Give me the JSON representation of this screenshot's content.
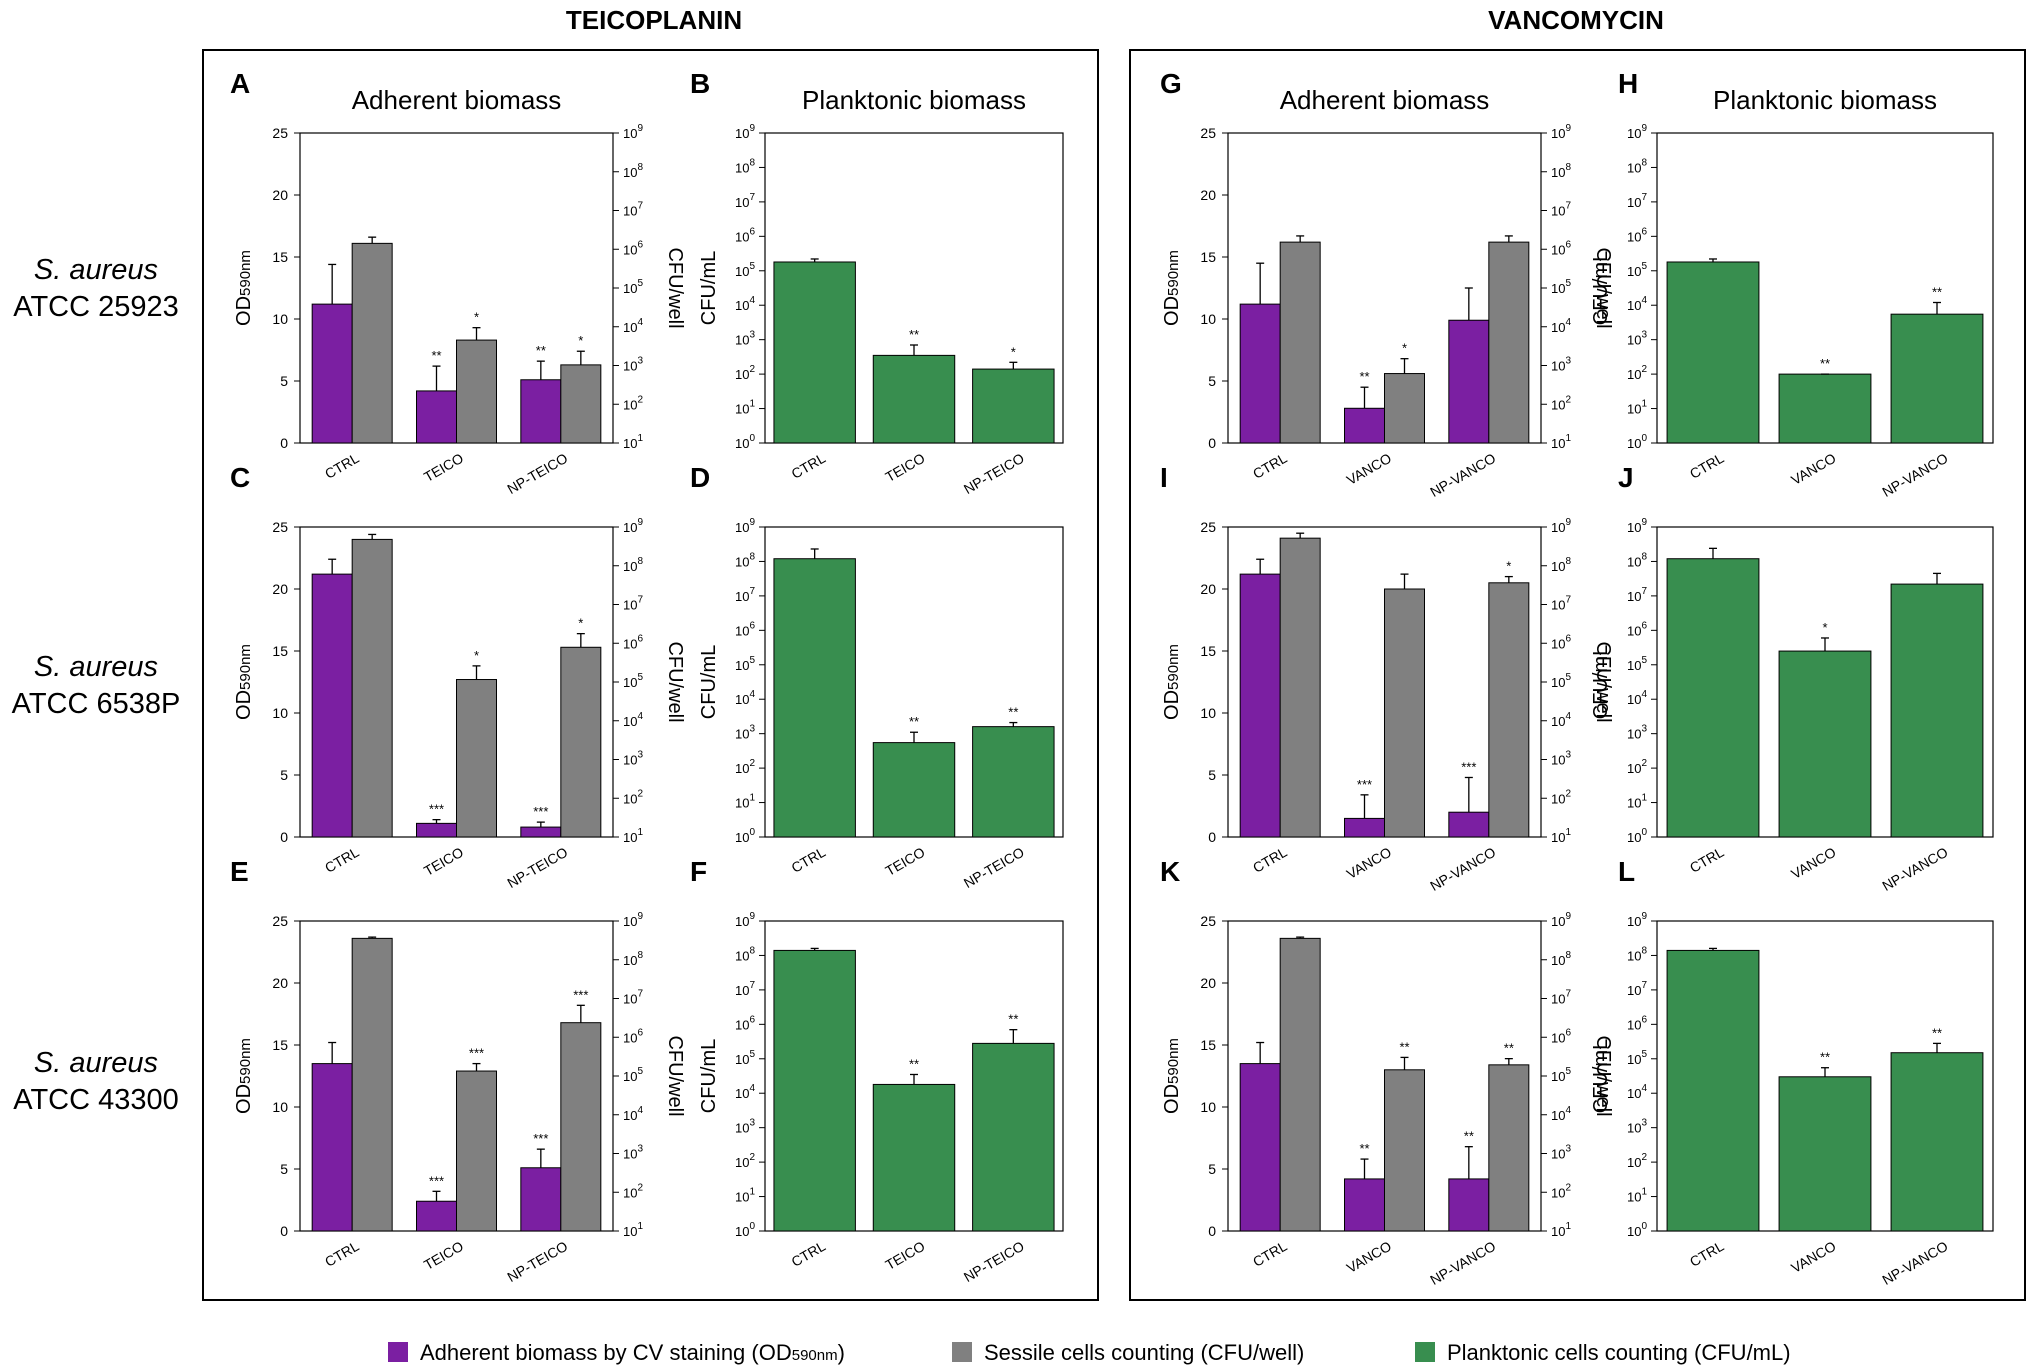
{
  "colors": {
    "adherent": "#7b1fa2",
    "sessile": "#808080",
    "planktonic": "#388e4f",
    "frame": "#000000"
  },
  "groups": [
    {
      "title": "TEICOPLANIN"
    },
    {
      "title": "VANCOMYCIN"
    }
  ],
  "strains": [
    {
      "species": "S. aureus",
      "atcc": "ATCC 25923"
    },
    {
      "species": "S. aureus",
      "atcc": "ATCC 6538P"
    },
    {
      "species": "S. aureus",
      "atcc": "ATCC 43300"
    }
  ],
  "legend": [
    {
      "label": "Adherent biomass by CV staining (OD",
      "sub": "590nm",
      "suffix": ")"
    },
    {
      "label": "Sessile cells counting (CFU/well)",
      "sub": "",
      "suffix": ""
    },
    {
      "label": "Planktonic cells counting (CFU/mL)",
      "sub": "",
      "suffix": ""
    }
  ],
  "chart_data": [
    {
      "panel": "A",
      "type": "bar",
      "title": "Adherent biomass",
      "categories": [
        "CTRL",
        "TEICO",
        "NP-TEICO"
      ],
      "ylabel": "OD",
      "ylabel_sub": "590nm",
      "ylim": [
        0,
        25
      ],
      "yticks": [
        0,
        5,
        10,
        15,
        20,
        25
      ],
      "y2label": "CFU/well",
      "y2_log_range": [
        1,
        9
      ],
      "series": [
        {
          "name": "Adherent biomass by CV staining",
          "axis": "left",
          "values": [
            11.2,
            4.2,
            5.1
          ],
          "errors": [
            3.2,
            2.0,
            1.5
          ],
          "sig": [
            "",
            "**",
            "**"
          ]
        },
        {
          "name": "Sessile cells counting",
          "axis": "left",
          "values": [
            16.1,
            8.3,
            6.3
          ],
          "errors": [
            0.5,
            1.0,
            1.1
          ],
          "sig": [
            "",
            "*",
            "*"
          ]
        }
      ]
    },
    {
      "panel": "B",
      "type": "bar",
      "title": "Planktonic biomass",
      "categories": [
        "CTRL",
        "TEICO",
        "NP-TEICO"
      ],
      "ylabel": "CFU/mL",
      "log_range": [
        0,
        9
      ],
      "series": [
        {
          "name": "Planktonic cells counting",
          "values": [
            180000,
            350,
            140
          ],
          "err_hi": [
            220000,
            700,
            220
          ],
          "sig": [
            "",
            "**",
            "*"
          ]
        }
      ]
    },
    {
      "panel": "C",
      "type": "bar",
      "title": "",
      "categories": [
        "CTRL",
        "TEICO",
        "NP-TEICO"
      ],
      "ylabel": "OD",
      "ylabel_sub": "590nm",
      "ylim": [
        0,
        25
      ],
      "yticks": [
        0,
        5,
        10,
        15,
        20,
        25
      ],
      "y2label": "CFU/well",
      "y2_log_range": [
        1,
        9
      ],
      "series": [
        {
          "name": "Adherent biomass by CV staining",
          "axis": "left",
          "values": [
            21.2,
            1.1,
            0.8
          ],
          "errors": [
            1.2,
            0.3,
            0.4
          ],
          "sig": [
            "",
            "***",
            "***"
          ]
        },
        {
          "name": "Sessile cells counting",
          "axis": "left",
          "values": [
            24.0,
            12.7,
            15.3
          ],
          "errors": [
            0.4,
            1.1,
            1.1
          ],
          "sig": [
            "",
            "*",
            "*"
          ]
        }
      ]
    },
    {
      "panel": "D",
      "type": "bar",
      "title": "",
      "categories": [
        "CTRL",
        "TEICO",
        "NP-TEICO"
      ],
      "ylabel": "CFU/mL",
      "log_range": [
        0,
        9
      ],
      "series": [
        {
          "name": "Planktonic cells counting",
          "values": [
            120000000,
            550,
            1600
          ],
          "err_hi": [
            230000000,
            1100,
            2100
          ],
          "sig": [
            "",
            "**",
            "**"
          ]
        }
      ]
    },
    {
      "panel": "E",
      "type": "bar",
      "title": "",
      "categories": [
        "CTRL",
        "TEICO",
        "NP-TEICO"
      ],
      "ylabel": "OD",
      "ylabel_sub": "590nm",
      "ylim": [
        0,
        25
      ],
      "yticks": [
        0,
        5,
        10,
        15,
        20,
        25
      ],
      "y2label": "CFU/well",
      "y2_log_range": [
        1,
        9
      ],
      "series": [
        {
          "name": "Adherent biomass by CV staining",
          "axis": "left",
          "values": [
            13.5,
            2.4,
            5.1
          ],
          "errors": [
            1.7,
            0.8,
            1.5
          ],
          "sig": [
            "",
            "***",
            "***"
          ]
        },
        {
          "name": "Sessile cells counting",
          "axis": "left",
          "values": [
            23.6,
            12.9,
            16.8
          ],
          "errors": [
            0.1,
            0.6,
            1.4
          ],
          "sig": [
            "",
            "***",
            "***"
          ]
        }
      ]
    },
    {
      "panel": "F",
      "type": "bar",
      "title": "",
      "categories": [
        "CTRL",
        "TEICO",
        "NP-TEICO"
      ],
      "ylabel": "CFU/mL",
      "log_range": [
        0,
        9
      ],
      "series": [
        {
          "name": "Planktonic cells counting",
          "values": [
            140000000,
            18000,
            280000
          ],
          "err_hi": [
            160000000,
            35000,
            700000
          ],
          "sig": [
            "",
            "**",
            "**"
          ]
        }
      ]
    },
    {
      "panel": "G",
      "type": "bar",
      "title": "Adherent biomass",
      "categories": [
        "CTRL",
        "VANCO",
        "NP-VANCO"
      ],
      "ylabel": "OD",
      "ylabel_sub": "590nm",
      "ylim": [
        0,
        25
      ],
      "yticks": [
        0,
        5,
        10,
        15,
        20,
        25
      ],
      "y2label": "CFU/well",
      "y2_log_range": [
        1,
        9
      ],
      "series": [
        {
          "name": "Adherent biomass by CV staining",
          "axis": "left",
          "values": [
            11.2,
            2.8,
            9.9
          ],
          "errors": [
            3.3,
            1.7,
            2.6
          ],
          "sig": [
            "",
            "**",
            ""
          ]
        },
        {
          "name": "Sessile cells counting",
          "axis": "left",
          "values": [
            16.2,
            5.6,
            16.2
          ],
          "errors": [
            0.5,
            1.2,
            0.5
          ],
          "sig": [
            "",
            "*",
            ""
          ]
        }
      ]
    },
    {
      "panel": "H",
      "type": "bar",
      "title": "Planktonic biomass",
      "categories": [
        "CTRL",
        "VANCO",
        "NP-VANCO"
      ],
      "ylabel": "CFU/mL",
      "log_range": [
        0,
        9
      ],
      "series": [
        {
          "name": "Planktonic cells counting",
          "values": [
            180000,
            100,
            5500
          ],
          "err_hi": [
            220000,
            100,
            12000
          ],
          "sig": [
            "",
            "**",
            "**"
          ]
        }
      ]
    },
    {
      "panel": "I",
      "type": "bar",
      "title": "",
      "categories": [
        "CTRL",
        "VANCO",
        "NP-VANCO"
      ],
      "ylabel": "OD",
      "ylabel_sub": "590nm",
      "ylim": [
        0,
        25
      ],
      "yticks": [
        0,
        5,
        10,
        15,
        20,
        25
      ],
      "y2label": "CFU/well",
      "y2_log_range": [
        1,
        9
      ],
      "series": [
        {
          "name": "Adherent biomass by CV staining",
          "axis": "left",
          "values": [
            21.2,
            1.5,
            2.0
          ],
          "errors": [
            1.2,
            1.9,
            2.8
          ],
          "sig": [
            "",
            "***",
            "***"
          ]
        },
        {
          "name": "Sessile cells counting",
          "axis": "left",
          "values": [
            24.1,
            20.0,
            20.5
          ],
          "errors": [
            0.4,
            1.2,
            0.5
          ],
          "sig": [
            "",
            "",
            "*"
          ]
        }
      ]
    },
    {
      "panel": "J",
      "type": "bar",
      "title": "",
      "categories": [
        "CTRL",
        "VANCO",
        "NP-VANCO"
      ],
      "ylabel": "CFU/mL",
      "log_range": [
        0,
        9
      ],
      "series": [
        {
          "name": "Planktonic cells counting",
          "values": [
            120000000,
            250000,
            22000000
          ],
          "err_hi": [
            240000000,
            600000,
            45000000
          ],
          "sig": [
            "",
            "*",
            ""
          ]
        }
      ]
    },
    {
      "panel": "K",
      "type": "bar",
      "title": "",
      "categories": [
        "CTRL",
        "VANCO",
        "NP-VANCO"
      ],
      "ylabel": "OD",
      "ylabel_sub": "590nm",
      "ylim": [
        0,
        25
      ],
      "yticks": [
        0,
        5,
        10,
        15,
        20,
        25
      ],
      "y2label": "CFU/well",
      "y2_log_range": [
        1,
        9
      ],
      "series": [
        {
          "name": "Adherent biomass by CV staining",
          "axis": "left",
          "values": [
            13.5,
            4.2,
            4.2
          ],
          "errors": [
            1.7,
            1.6,
            2.6
          ],
          "sig": [
            "",
            "**",
            "**"
          ]
        },
        {
          "name": "Sessile cells counting",
          "axis": "left",
          "values": [
            23.6,
            13.0,
            13.4
          ],
          "errors": [
            0.1,
            1.0,
            0.5
          ],
          "sig": [
            "",
            "**",
            "**"
          ]
        }
      ]
    },
    {
      "panel": "L",
      "type": "bar",
      "title": "",
      "categories": [
        "CTRL",
        "VANCO",
        "NP-VANCO"
      ],
      "ylabel": "CFU/mL",
      "log_range": [
        0,
        9
      ],
      "series": [
        {
          "name": "Planktonic cells counting",
          "values": [
            140000000,
            30000,
            150000
          ],
          "err_hi": [
            160000000,
            55000,
            280000
          ],
          "sig": [
            "",
            "**",
            "**"
          ]
        }
      ]
    }
  ]
}
